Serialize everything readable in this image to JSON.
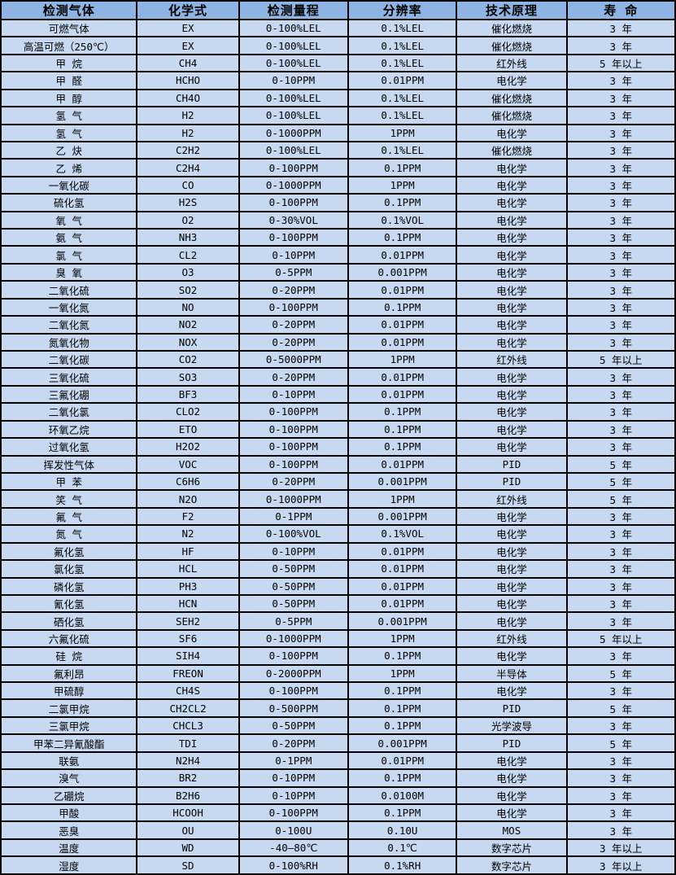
{
  "table": {
    "title": "gas-sensor-specification-table",
    "colors": {
      "header_bg": "#8db4e2",
      "row_bg": "#c6d9f0",
      "border": "#000000",
      "text": "#000000"
    },
    "headers": [
      "检测气体",
      "化学式",
      "检测量程",
      "分辨率",
      "技术原理",
      "寿 命"
    ],
    "rows": [
      [
        "可燃气体",
        "EX",
        "0-100%LEL",
        "0.1%LEL",
        "催化燃烧",
        "3 年"
      ],
      [
        "高温可燃（250℃）",
        "EX",
        "0-100%LEL",
        "0.1%LEL",
        "催化燃烧",
        "3 年"
      ],
      [
        "甲 烷",
        "CH4",
        "0-100%LEL",
        "0.1%LEL",
        "红外线",
        "5 年以上"
      ],
      [
        "甲 醛",
        "HCHO",
        "0-10PPM",
        "0.01PPM",
        "电化学",
        "3 年"
      ],
      [
        "甲 醇",
        "CH4O",
        "0-100%LEL",
        "0.1%LEL",
        "催化燃烧",
        "3 年"
      ],
      [
        "氢 气",
        "H2",
        "0-100%LEL",
        "0.1%LEL",
        "催化燃烧",
        "3 年"
      ],
      [
        "氢 气",
        "H2",
        "0-1000PPM",
        "1PPM",
        "电化学",
        "3 年"
      ],
      [
        "乙 炔",
        "C2H2",
        "0-100%LEL",
        "0.1%LEL",
        "催化燃烧",
        "3 年"
      ],
      [
        "乙 烯",
        "C2H4",
        "0-100PPM",
        "0.1PPM",
        "电化学",
        "3 年"
      ],
      [
        "一氧化碳",
        "CO",
        "0-1000PPM",
        "1PPM",
        "电化学",
        "3 年"
      ],
      [
        "硫化氢",
        "H2S",
        "0-100PPM",
        "0.1PPM",
        "电化学",
        "3 年"
      ],
      [
        "氧 气",
        "O2",
        "0-30%VOL",
        "0.1%VOL",
        "电化学",
        "3 年"
      ],
      [
        "氨 气",
        "NH3",
        "0-100PPM",
        "0.1PPM",
        "电化学",
        "3 年"
      ],
      [
        "氯 气",
        "CL2",
        "0-10PPM",
        "0.01PPM",
        "电化学",
        "3 年"
      ],
      [
        "臭 氧",
        "O3",
        "0-5PPM",
        "0.001PPM",
        "电化学",
        "3 年"
      ],
      [
        "二氧化硫",
        "SO2",
        "0-20PPM",
        "0.01PPM",
        "电化学",
        "3 年"
      ],
      [
        "一氧化氮",
        "NO",
        "0-100PPM",
        "0.1PPM",
        "电化学",
        "3 年"
      ],
      [
        "二氧化氮",
        "NO2",
        "0-20PPM",
        "0.01PPM",
        "电化学",
        "3 年"
      ],
      [
        "氮氧化物",
        "NOX",
        "0-20PPM",
        "0.01PPM",
        "电化学",
        "3 年"
      ],
      [
        "二氧化碳",
        "CO2",
        "0-5000PPM",
        "1PPM",
        "红外线",
        "5 年以上"
      ],
      [
        "三氧化硫",
        "SO3",
        "0-20PPM",
        "0.01PPM",
        "电化学",
        "3 年"
      ],
      [
        "三氟化硼",
        "BF3",
        "0-10PPM",
        "0.01PPM",
        "电化学",
        "3 年"
      ],
      [
        "二氧化氯",
        "CLO2",
        "0-100PPM",
        "0.1PPM",
        "电化学",
        "3 年"
      ],
      [
        "环氧乙烷",
        "ETO",
        "0-100PPM",
        "0.1PPM",
        "电化学",
        "3 年"
      ],
      [
        "过氧化氢",
        "H2O2",
        "0-100PPM",
        "0.1PPM",
        "电化学",
        "3 年"
      ],
      [
        "挥发性气体",
        "VOC",
        "0-100PPM",
        "0.01PPM",
        "PID",
        "5 年"
      ],
      [
        "甲 苯",
        "C6H6",
        "0-20PPM",
        "0.001PPM",
        "PID",
        "5 年"
      ],
      [
        "笑 气",
        "N2O",
        "0-1000PPM",
        "1PPM",
        "红外线",
        "5 年"
      ],
      [
        "氟 气",
        "F2",
        "0-1PPM",
        "0.001PPM",
        "电化学",
        "3 年"
      ],
      [
        "氮 气",
        "N2",
        "0-100%VOL",
        "0.1%VOL",
        "电化学",
        "3 年"
      ],
      [
        "氟化氢",
        "HF",
        "0-10PPM",
        "0.01PPM",
        "电化学",
        "3 年"
      ],
      [
        "氯化氢",
        "HCL",
        "0-50PPM",
        "0.01PPM",
        "电化学",
        "3 年"
      ],
      [
        "磷化氢",
        "PH3",
        "0-50PPM",
        "0.01PPM",
        "电化学",
        "3 年"
      ],
      [
        "氰化氢",
        "HCN",
        "0-50PPM",
        "0.01PPM",
        "电化学",
        "3 年"
      ],
      [
        "硒化氢",
        "SEH2",
        "0-5PPM",
        "0.001PPM",
        "电化学",
        "3 年"
      ],
      [
        "六氟化硫",
        "SF6",
        "0-1000PPM",
        "1PPM",
        "红外线",
        "5 年以上"
      ],
      [
        "硅 烷",
        "SIH4",
        "0-100PPM",
        "0.1PPM",
        "电化学",
        "3 年"
      ],
      [
        "氟利昂",
        "FREON",
        "0-2000PPM",
        "1PPM",
        "半导体",
        "5 年"
      ],
      [
        "甲硫醇",
        "CH4S",
        "0-100PPM",
        "0.1PPM",
        "电化学",
        "3 年"
      ],
      [
        "二氯甲烷",
        "CH2CL2",
        "0-500PPM",
        "0.1PPM",
        "PID",
        "5 年"
      ],
      [
        "三氯甲烷",
        "CHCL3",
        "0-50PPM",
        "0.1PPM",
        "光学波导",
        "3 年"
      ],
      [
        "甲苯二异氰酸酯",
        "TDI",
        "0-20PPM",
        "0.001PPM",
        "PID",
        "5 年"
      ],
      [
        "联氨",
        "N2H4",
        "0-1PPM",
        "0.01PPM",
        "电化学",
        "3 年"
      ],
      [
        "溴气",
        "BR2",
        "0-10PPM",
        "0.1PPM",
        "电化学",
        "3 年"
      ],
      [
        "乙硼烷",
        "B2H6",
        "0-10PPM",
        "0.0100M",
        "电化学",
        "3 年"
      ],
      [
        "甲酸",
        "HCOOH",
        "0-100PPM",
        "0.1PPM",
        "电化学",
        "3 年"
      ],
      [
        "恶臭",
        "OU",
        "0-100U",
        "0.10U",
        "MOS",
        "3 年"
      ],
      [
        "温度",
        "WD",
        "-40—80℃",
        "0.1℃",
        "数字芯片",
        "3 年以上"
      ],
      [
        "湿度",
        "SD",
        "0-100%RH",
        "0.1%RH",
        "数字芯片",
        "3 年以上"
      ]
    ]
  }
}
